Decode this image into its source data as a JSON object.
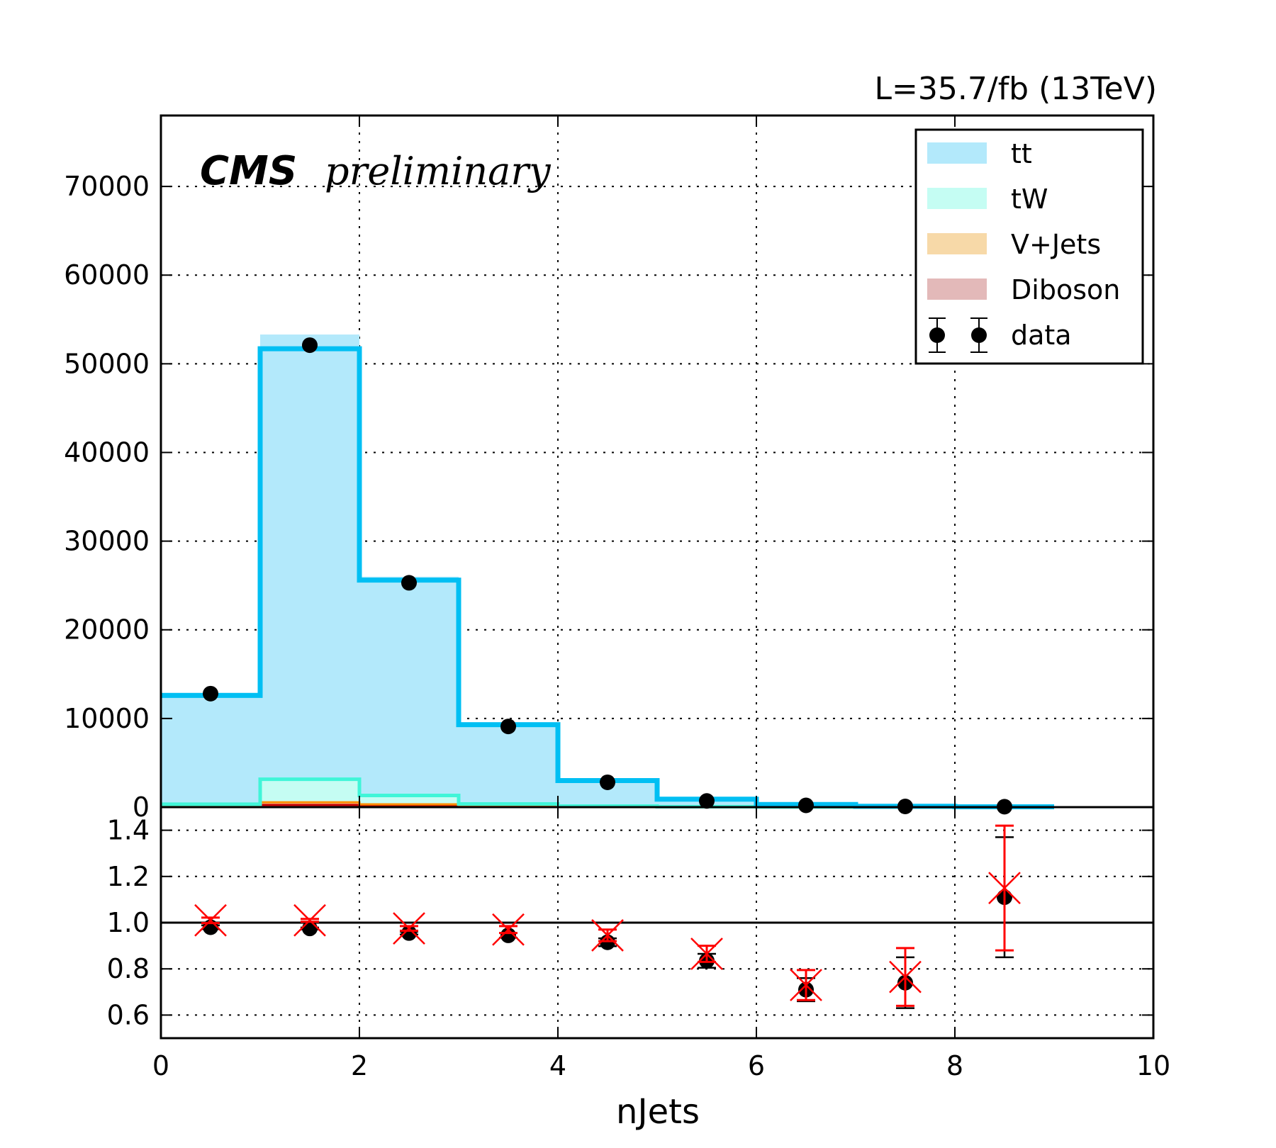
{
  "header": {
    "lumi_label": "L=35.7/fb (13TeV)",
    "experiment": "CMS",
    "status": "preliminary"
  },
  "chart_data": [
    {
      "panel": "main",
      "type": "bar",
      "stacked": true,
      "xlim": [
        0,
        10
      ],
      "ylim": [
        0,
        78000
      ],
      "xticks": [
        0,
        2,
        4,
        6,
        8,
        10
      ],
      "yticks": [
        0,
        10000,
        20000,
        30000,
        40000,
        50000,
        60000,
        70000
      ],
      "grid": true,
      "legend_position": "top-right",
      "bin_edges": [
        0,
        1,
        2,
        3,
        4,
        5,
        6,
        7,
        8,
        9
      ],
      "series": [
        {
          "name": "Diboson",
          "color": "#e3b9b9",
          "values": [
            60,
            250,
            140,
            50,
            20,
            8,
            3,
            1,
            0
          ]
        },
        {
          "name": "V+Jets",
          "color": "#f7d9a8",
          "values": [
            120,
            300,
            180,
            60,
            20,
            8,
            3,
            1,
            0
          ]
        },
        {
          "name": "tW",
          "color": "#c5fdf3",
          "values": [
            150,
            2600,
            1000,
            250,
            80,
            30,
            10,
            3,
            1
          ]
        },
        {
          "name": "tt",
          "color": "#b3e9fb",
          "values": [
            12570,
            50150,
            24670,
            8990,
            2930,
            854,
            234,
            65,
            18
          ]
        }
      ],
      "mc_total_line": {
        "color": "#00bff3",
        "values": [
          12600,
          51700,
          25600,
          9300,
          3000,
          900,
          300,
          100,
          40
        ]
      },
      "tw_line": {
        "color": "#40f5d8",
        "values": [
          330,
          3150,
          1320,
          360,
          120,
          46,
          16,
          5,
          1
        ]
      },
      "vjets_line": {
        "color": "#ff8c00",
        "values": [
          180,
          550,
          320,
          110,
          40,
          16,
          6,
          2,
          0
        ]
      },
      "diboson_line": {
        "color": "#c80000",
        "values": [
          60,
          250,
          140,
          50,
          20,
          8,
          3,
          1,
          0
        ]
      },
      "data": {
        "name": "data",
        "x": [
          0.5,
          1.5,
          2.5,
          3.5,
          4.5,
          5.5,
          6.5,
          7.5,
          8.5
        ],
        "y": [
          12800,
          52100,
          25300,
          9100,
          2800,
          700,
          200,
          80,
          50
        ]
      }
    },
    {
      "panel": "ratio",
      "type": "scatter",
      "xlim": [
        0,
        10
      ],
      "ylim": [
        0.5,
        1.5
      ],
      "yticks": [
        0.6,
        0.8,
        1.0,
        1.2,
        1.4
      ],
      "ytick_labels": [
        "0.6",
        "0.8",
        "1.0",
        "1.2",
        "1.4"
      ],
      "grid": true,
      "reference_line": 1.0,
      "xlabel": "nJets",
      "data_ratio": {
        "x": [
          0.5,
          1.5,
          2.5,
          3.5,
          4.5,
          5.5,
          6.5,
          7.5,
          8.5
        ],
        "y": [
          0.98,
          0.975,
          0.955,
          0.945,
          0.915,
          0.835,
          0.71,
          0.74,
          1.11
        ],
        "err": [
          0.008,
          0.004,
          0.006,
          0.01,
          0.017,
          0.03,
          0.05,
          0.11,
          0.26
        ]
      },
      "mc_ratio": {
        "color": "#ff0000",
        "x": [
          0.5,
          1.5,
          2.5,
          3.5,
          4.5,
          5.5,
          6.5,
          7.5,
          8.5
        ],
        "y": [
          1.01,
          1.01,
          0.975,
          0.97,
          0.945,
          0.865,
          0.73,
          0.765,
          1.15
        ],
        "err": [
          0.012,
          0.006,
          0.01,
          0.015,
          0.025,
          0.035,
          0.065,
          0.125,
          0.27
        ]
      }
    }
  ]
}
